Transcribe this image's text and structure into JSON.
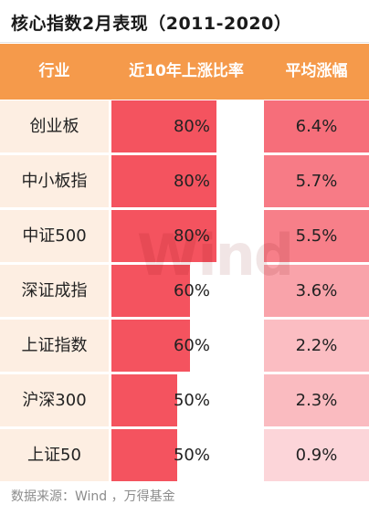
{
  "title": "核心指数2月表现（2011-2020）",
  "headers": {
    "industry": "行业",
    "up_ratio": "近10年上涨比率",
    "avg_gain": "平均涨幅"
  },
  "watermark": "Wind",
  "source": "数据来源：Wind ，万得基金",
  "colors": {
    "header_bg": "#f59a4b",
    "name_cell_bg": "#fdeee2",
    "bar_color": "#f4535f"
  },
  "rows": [
    {
      "name": "创业板",
      "ratio": 80,
      "ratio_label": "80%",
      "avg": 6.4,
      "avg_label": "6.4%"
    },
    {
      "name": "中小板指",
      "ratio": 80,
      "ratio_label": "80%",
      "avg": 5.7,
      "avg_label": "5.7%"
    },
    {
      "name": "中证500",
      "ratio": 80,
      "ratio_label": "80%",
      "avg": 5.5,
      "avg_label": "5.5%"
    },
    {
      "name": "深证成指",
      "ratio": 60,
      "ratio_label": "60%",
      "avg": 3.6,
      "avg_label": "3.6%"
    },
    {
      "name": "上证指数",
      "ratio": 60,
      "ratio_label": "60%",
      "avg": 2.2,
      "avg_label": "2.2%"
    },
    {
      "name": "沪深300",
      "ratio": 50,
      "ratio_label": "50%",
      "avg": 2.3,
      "avg_label": "2.3%"
    },
    {
      "name": "上证50",
      "ratio": 50,
      "ratio_label": "50%",
      "avg": 0.9,
      "avg_label": "0.9%"
    }
  ],
  "chart_data": {
    "type": "table",
    "title": "核心指数2月表现（2011-2020）",
    "columns": [
      "行业",
      "近10年上涨比率",
      "平均涨幅"
    ],
    "categories": [
      "创业板",
      "中小板指",
      "中证500",
      "深证成指",
      "上证指数",
      "沪深300",
      "上证50"
    ],
    "series": [
      {
        "name": "近10年上涨比率",
        "values": [
          80,
          80,
          80,
          60,
          60,
          50,
          50
        ]
      },
      {
        "name": "平均涨幅",
        "values": [
          6.4,
          5.7,
          5.5,
          3.6,
          2.2,
          2.3,
          0.9
        ]
      }
    ]
  }
}
